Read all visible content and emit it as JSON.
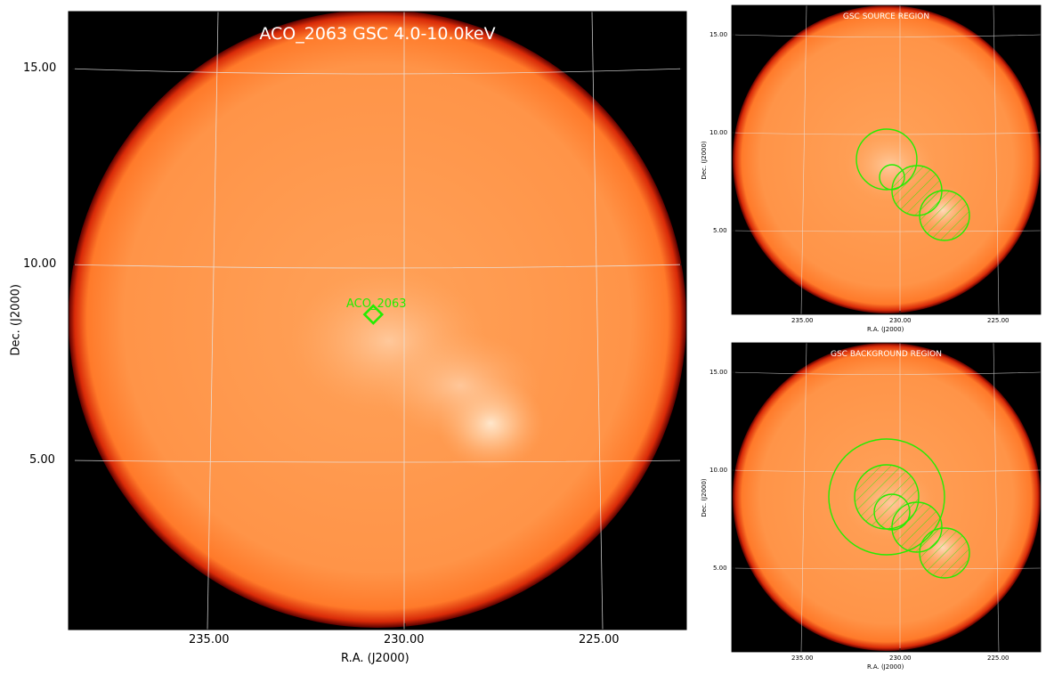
{
  "main": {
    "title": "ACO_2063 GSC 4.0-10.0keV",
    "xlabel": "R.A. (J2000)",
    "ylabel": "Dec. (J2000)",
    "xticks": [
      "235.00",
      "230.00",
      "225.00"
    ],
    "yticks": [
      "15.00",
      "10.00",
      "5.00"
    ],
    "marker_label": "ACO_2063"
  },
  "source_panel": {
    "title": "GSC SOURCE REGION",
    "xlabel": "R.A. (J2000)",
    "ylabel": "Dec. (J2000)",
    "xticks": [
      "235.00",
      "230.00",
      "225.00"
    ],
    "yticks": [
      "15.00",
      "10.00",
      "5.00"
    ]
  },
  "background_panel": {
    "title": "GSC BACKGROUND REGION",
    "xlabel": "R.A. (J2000)",
    "ylabel": "Dec. (J2000)",
    "xticks": [
      "235.00",
      "230.00",
      "225.00"
    ],
    "yticks": [
      "15.00",
      "10.00",
      "5.00"
    ]
  },
  "colors": {
    "disk": "#ff8c3a",
    "disk_edge": "#c80000",
    "region": "#22ee00",
    "grid": "#e8e8e8",
    "text_on_image": "#ffffff"
  }
}
